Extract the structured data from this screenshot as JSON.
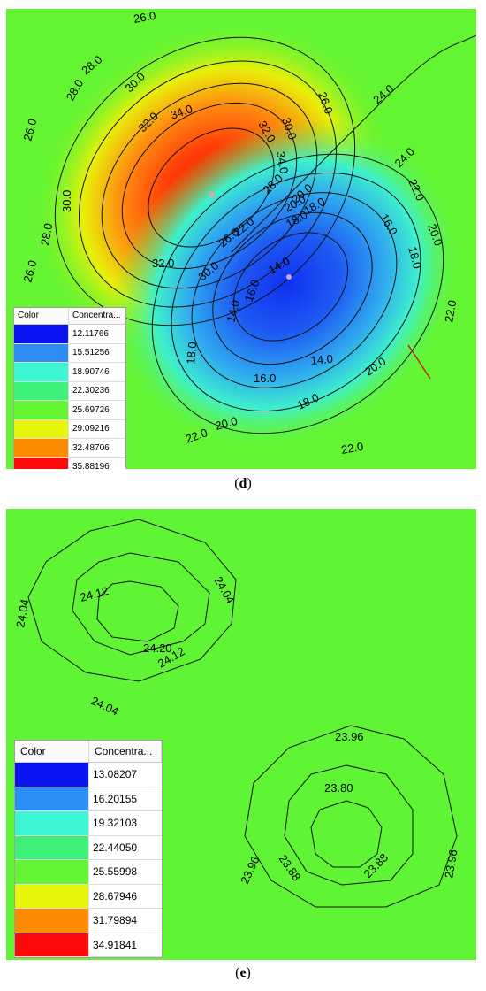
{
  "panels": [
    {
      "label": "d",
      "legend": {
        "col_color": "Color",
        "col_conc": "Concentra...",
        "entries": [
          {
            "value": "12.11766",
            "color": "#0a14f0"
          },
          {
            "value": "15.51256",
            "color": "#2a8ef5"
          },
          {
            "value": "18.90746",
            "color": "#3cf5d2"
          },
          {
            "value": "22.30236",
            "color": "#3cf078"
          },
          {
            "value": "25.69726",
            "color": "#64f532"
          },
          {
            "value": "29.09216",
            "color": "#e6f50a"
          },
          {
            "value": "32.48706",
            "color": "#ff8c00"
          },
          {
            "value": "35.88196",
            "color": "#ff0a0a"
          }
        ]
      },
      "contour_labels": [
        "26.0",
        "28.0",
        "30.0",
        "32.0",
        "34.0",
        "26.0",
        "30.0",
        "32.0",
        "34.0",
        "26.0",
        "28.0",
        "30.0",
        "32.0",
        "28.0",
        "26.0",
        "24.0",
        "24.0",
        "22.0",
        "20.0",
        "18.0",
        "16.0",
        "14.0",
        "22.0",
        "20.0",
        "18.0",
        "16.0",
        "14.0",
        "18.0",
        "20.0",
        "22.0",
        "22.0",
        "20.0",
        "18.0",
        "16.0",
        "14.0",
        "28.0",
        "20.0",
        "18.0",
        "30.0",
        "26.0",
        "22.0"
      ]
    },
    {
      "label": "e",
      "legend": {
        "col_color": "Color",
        "col_conc": "Concentra...",
        "entries": [
          {
            "value": "13.08207",
            "color": "#0a14f0"
          },
          {
            "value": "16.20155",
            "color": "#2a8ef5"
          },
          {
            "value": "19.32103",
            "color": "#3cf5d2"
          },
          {
            "value": "22.44050",
            "color": "#3cf078"
          },
          {
            "value": "25.55998",
            "color": "#64f532"
          },
          {
            "value": "28.67946",
            "color": "#e6f50a"
          },
          {
            "value": "31.79894",
            "color": "#ff8c00"
          },
          {
            "value": "34.91841",
            "color": "#ff0a0a"
          }
        ]
      },
      "contour_labels": [
        "24.04",
        "24.12",
        "24.04",
        "24.20",
        "24.12",
        "24.04",
        "23.96",
        "23.80",
        "23.96",
        "23.88",
        "23.88",
        "23.96"
      ]
    }
  ]
}
